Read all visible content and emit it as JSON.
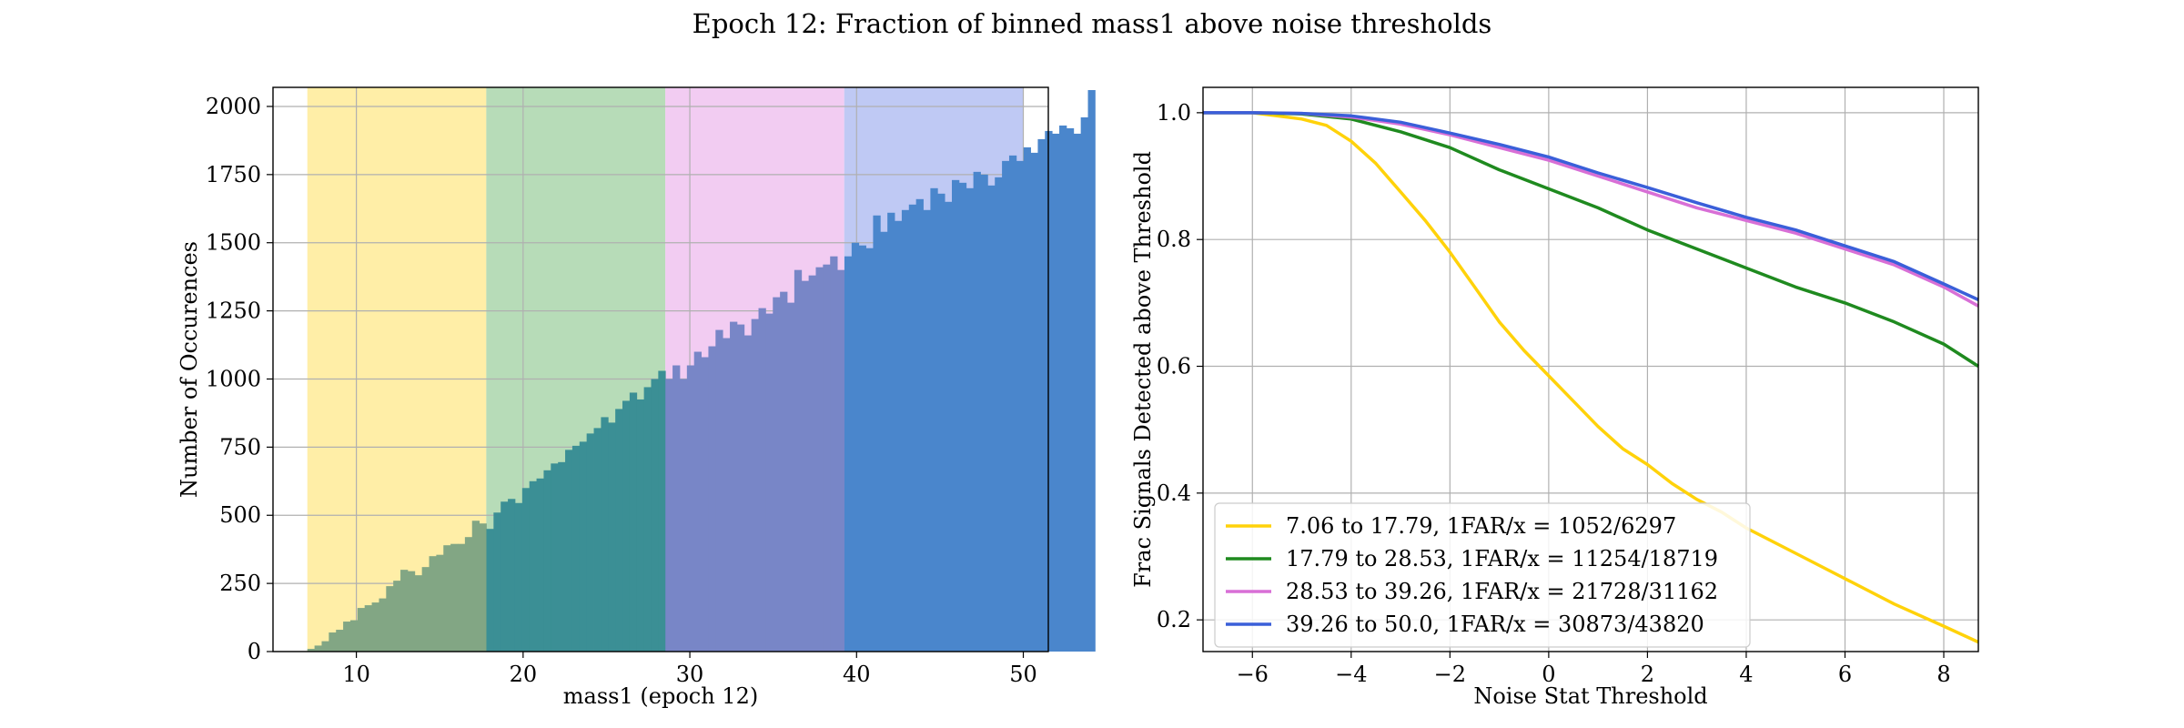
{
  "figure_title": "Epoch 12: Fraction of binned mass1 above noise thresholds",
  "chart_data": [
    {
      "type": "bar",
      "subtype": "histogram",
      "xlabel": "mass1 (epoch 12)",
      "ylabel": "Number of Occurences",
      "xlim": [
        5,
        51.5
      ],
      "ylim": [
        0,
        2070
      ],
      "xticks": [
        10,
        20,
        30,
        40,
        50
      ],
      "yticks": [
        0,
        250,
        500,
        750,
        1000,
        1250,
        1500,
        1750,
        2000
      ],
      "grid": true,
      "bin_start": 7.06,
      "bin_width": 0.4295,
      "counts": [
        10,
        22,
        38,
        70,
        80,
        110,
        115,
        160,
        170,
        180,
        195,
        240,
        260,
        300,
        295,
        280,
        310,
        350,
        355,
        390,
        395,
        395,
        420,
        480,
        470,
        450,
        510,
        550,
        560,
        545,
        600,
        625,
        635,
        665,
        690,
        695,
        740,
        755,
        770,
        800,
        820,
        860,
        840,
        890,
        920,
        950,
        925,
        970,
        1000,
        1030,
        1000,
        1050,
        1000,
        1050,
        1100,
        1080,
        1120,
        1180,
        1150,
        1210,
        1200,
        1160,
        1220,
        1260,
        1240,
        1300,
        1320,
        1280,
        1400,
        1360,
        1380,
        1410,
        1420,
        1450,
        1400,
        1450,
        1500,
        1490,
        1480,
        1600,
        1540,
        1610,
        1580,
        1620,
        1640,
        1660,
        1620,
        1700,
        1680,
        1650,
        1730,
        1720,
        1700,
        1760,
        1750,
        1710,
        1740,
        1800,
        1820,
        1800,
        1850,
        1830,
        1880,
        1910,
        1900,
        1930,
        1920,
        1900,
        1960,
        2060
      ],
      "bar_color": "#4a86cc",
      "regions": [
        {
          "from": 7.06,
          "to": 17.79,
          "color": "#ffe88a",
          "bar_color": "#82a684"
        },
        {
          "from": 17.79,
          "to": 28.53,
          "color": "#9fd0a0",
          "bar_color": "#3b8f95"
        },
        {
          "from": 28.53,
          "to": 39.26,
          "color": "#eebbed",
          "bar_color": "#7886c7"
        },
        {
          "from": 39.26,
          "to": 50.0,
          "color": "#aab7f0",
          "bar_color": "#4a86cc"
        }
      ]
    },
    {
      "type": "line",
      "xlabel": "Noise Stat Threshold",
      "ylabel": "Frac Signals Detected above Threshold",
      "xlim": [
        -7,
        8.7
      ],
      "ylim": [
        0.15,
        1.04
      ],
      "xticks": [
        -6,
        -4,
        -2,
        0,
        2,
        4,
        6,
        8
      ],
      "yticks": [
        0.2,
        0.4,
        0.6,
        0.8,
        1.0
      ],
      "grid": true,
      "legend_position": "lower-left",
      "series": [
        {
          "name": "7.06 to 17.79, 1FAR/x = 1052/6297",
          "color": "#ffd20a",
          "x": [
            -7,
            -6,
            -5,
            -4.5,
            -4,
            -3.5,
            -3,
            -2.5,
            -2,
            -1.5,
            -1,
            -0.5,
            0,
            0.5,
            1,
            1.5,
            2,
            2.5,
            3,
            3.5,
            4,
            5,
            6,
            7,
            8,
            8.7
          ],
          "y": [
            1.0,
            1.0,
            0.99,
            0.98,
            0.955,
            0.92,
            0.875,
            0.83,
            0.78,
            0.725,
            0.67,
            0.625,
            0.585,
            0.545,
            0.505,
            0.47,
            0.445,
            0.415,
            0.39,
            0.37,
            0.345,
            0.305,
            0.265,
            0.225,
            0.19,
            0.165
          ]
        },
        {
          "name": "17.79 to 28.53, 1FAR/x = 11254/18719",
          "color": "#1f8a1f",
          "x": [
            -7,
            -6,
            -5,
            -4,
            -3,
            -2,
            -1,
            0,
            1,
            2,
            3,
            4,
            5,
            6,
            7,
            8,
            8.7
          ],
          "y": [
            1.0,
            1.0,
            0.998,
            0.99,
            0.97,
            0.945,
            0.91,
            0.88,
            0.85,
            0.815,
            0.785,
            0.755,
            0.725,
            0.7,
            0.67,
            0.635,
            0.6
          ]
        },
        {
          "name": "28.53 to 39.26, 1FAR/x = 21728/31162",
          "color": "#d86fd6",
          "x": [
            -7,
            -6,
            -5,
            -4,
            -3,
            -2,
            -1,
            0,
            1,
            2,
            3,
            4,
            5,
            6,
            7,
            8,
            8.7
          ],
          "y": [
            1.0,
            1.0,
            0.999,
            0.993,
            0.982,
            0.965,
            0.945,
            0.925,
            0.9,
            0.875,
            0.85,
            0.83,
            0.81,
            0.785,
            0.76,
            0.725,
            0.695
          ]
        },
        {
          "name": "39.26 to 50.0, 1FAR/x = 30873/43820",
          "color": "#3a5fd9",
          "x": [
            -7,
            -6,
            -5,
            -4,
            -3,
            -2,
            -1,
            0,
            1,
            2,
            3,
            4,
            5,
            6,
            7,
            8,
            8.7
          ],
          "y": [
            1.0,
            1.0,
            0.999,
            0.995,
            0.985,
            0.968,
            0.95,
            0.93,
            0.905,
            0.882,
            0.858,
            0.835,
            0.815,
            0.79,
            0.765,
            0.73,
            0.705
          ]
        }
      ]
    }
  ]
}
